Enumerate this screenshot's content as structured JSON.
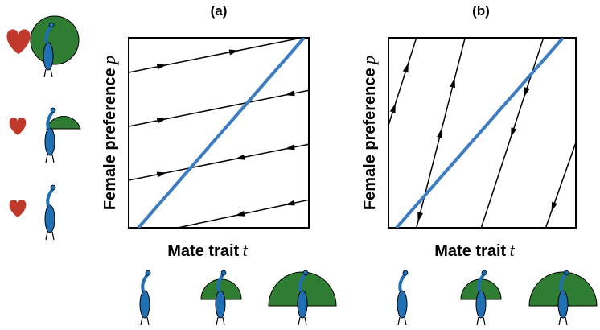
{
  "panels": [
    {
      "label": "(a)",
      "x_label": "Mate trait",
      "x_symbol": "t",
      "y_label": "Female preference",
      "y_symbol": "p"
    },
    {
      "label": "(b)",
      "x_label": "Mate trait",
      "x_symbol": "t",
      "y_label": "Female preference",
      "y_symbol": "p"
    }
  ]
}
